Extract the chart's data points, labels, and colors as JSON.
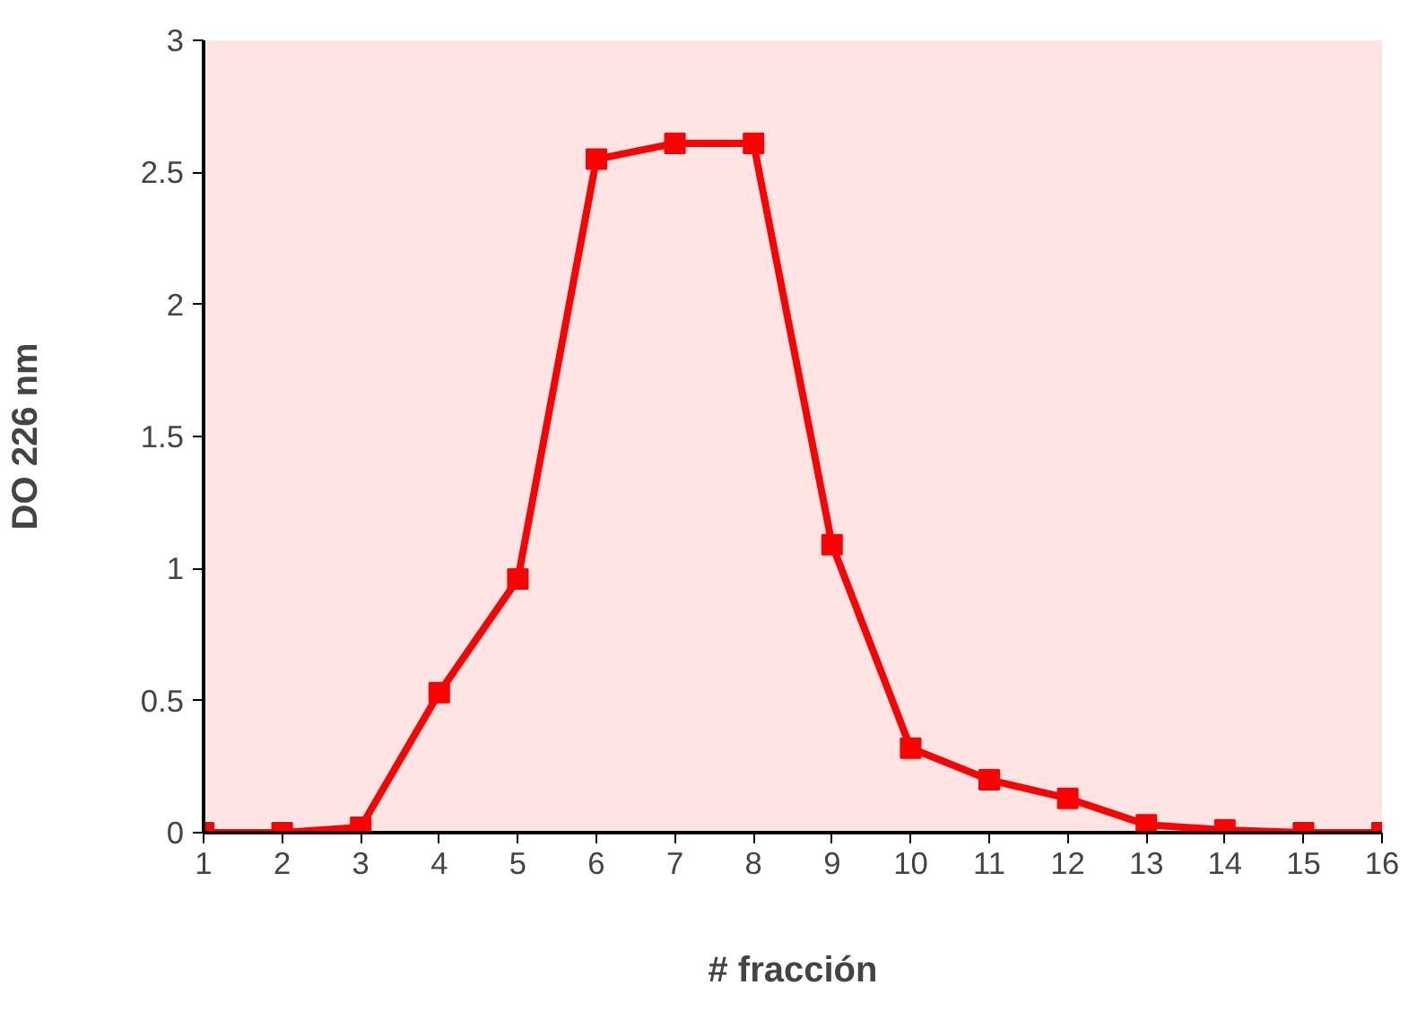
{
  "chart_data": {
    "type": "line",
    "xlabel": "# fracción",
    "ylabel": "DO 226 nm",
    "x": [
      1,
      2,
      3,
      4,
      5,
      6,
      7,
      8,
      9,
      10,
      11,
      12,
      13,
      14,
      15,
      16
    ],
    "series": [
      {
        "color": "#ff0000",
        "values": [
          0,
          0,
          0.02,
          0.53,
          0.96,
          2.55,
          2.61,
          2.61,
          1.09,
          0.32,
          0.2,
          0.13,
          0.03,
          0.01,
          0,
          0
        ]
      }
    ],
    "xlim": [
      1,
      16
    ],
    "xticks": [
      1,
      2,
      3,
      4,
      5,
      6,
      7,
      8,
      9,
      10,
      11,
      12,
      13,
      14,
      15,
      16
    ],
    "ylim": [
      0,
      3
    ],
    "yticks": [
      0,
      {
        "value": 0.5,
        "label": "0.5"
      },
      1,
      {
        "value": 1.5,
        "label": "1.5"
      },
      2,
      {
        "value": 2.5,
        "label": "2.5"
      },
      3
    ],
    "grid": false,
    "marker": "square",
    "line_style": "solid"
  }
}
